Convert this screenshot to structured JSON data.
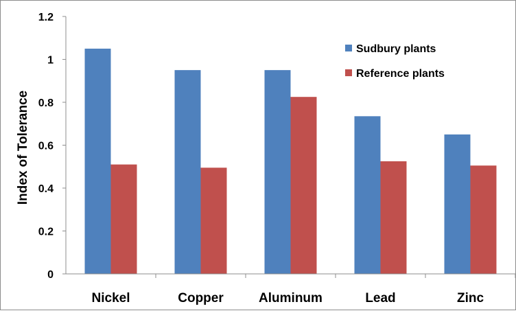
{
  "chart_data": {
    "type": "bar",
    "title": "",
    "xlabel": "",
    "ylabel": "Index of Tolerance",
    "ylim": [
      0,
      1.2
    ],
    "yticks": [
      "0",
      "0.2",
      "0.4",
      "0.6",
      "0.8",
      "1",
      "1.2"
    ],
    "categories": [
      "Nickel",
      "Copper",
      "Aluminum",
      "Lead",
      "Zinc"
    ],
    "series": [
      {
        "name": "Sudbury plants",
        "color": "#4f81bd",
        "values": [
          1.05,
          0.95,
          0.95,
          0.735,
          0.65
        ]
      },
      {
        "name": "Reference plants",
        "color": "#c0504d",
        "values": [
          0.51,
          0.495,
          0.825,
          0.525,
          0.505
        ]
      }
    ],
    "grid": false,
    "legend": "top-right"
  }
}
